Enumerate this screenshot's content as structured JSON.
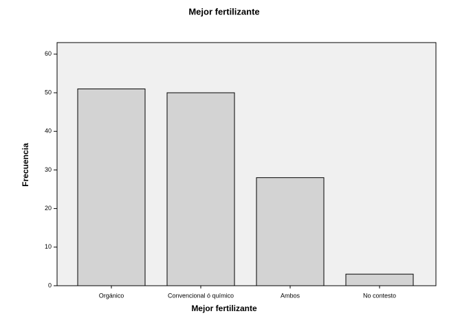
{
  "chart_data": {
    "type": "bar",
    "title": "Mejor fertilizante",
    "xlabel": "Mejor fertilizante",
    "ylabel": "Frecuencia",
    "categories": [
      "Orgánico",
      "Convencional ó químico",
      "Ambos",
      "No contesto"
    ],
    "values": [
      51,
      50,
      28,
      3
    ],
    "color": "#d3d3d3",
    "ylim": [
      0,
      63
    ],
    "yticks": [
      0,
      10,
      20,
      30,
      40,
      50,
      60
    ]
  }
}
